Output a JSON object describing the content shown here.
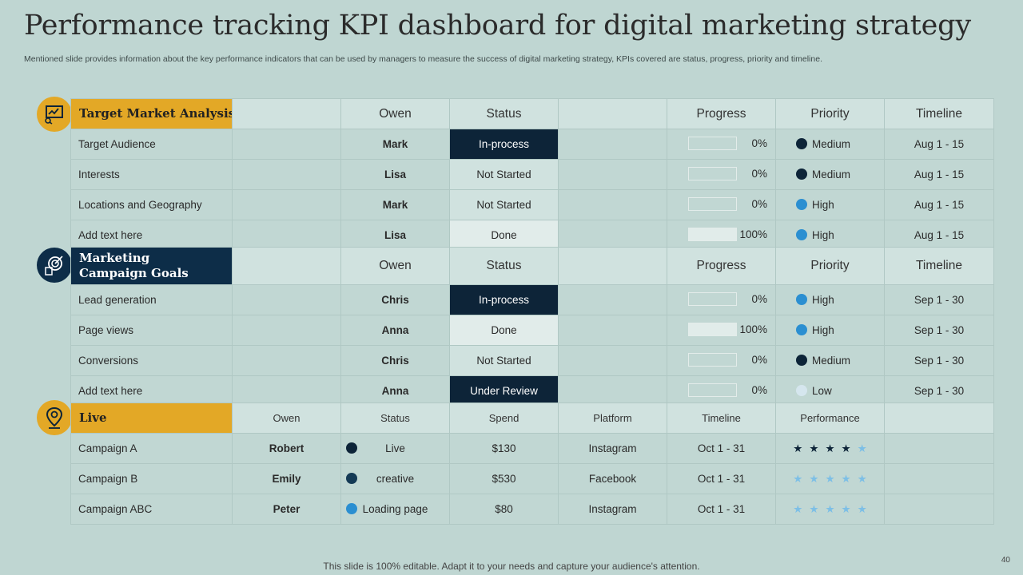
{
  "title": "Performance tracking KPI dashboard for digital marketing strategy",
  "subtitle": "Mentioned slide provides information about the key performance indicators that can be used by managers to measure the success of digital marketing strategy, KPIs covered are status, progress, priority and timeline.",
  "colors": {
    "navy": "#0d2438",
    "accent_yellow": "#e3a826",
    "blue": "#2b8fd1",
    "light_blue": "#d5e6ee",
    "background": "#bfd6d2"
  },
  "section1": {
    "title": "Target Market Analysis",
    "icon": "presentation-chart-icon",
    "headers": [
      "Owen",
      "Status",
      "Progress",
      "Priority",
      "Timeline"
    ],
    "rows": [
      {
        "task": "Target Audience",
        "owner": "Mark",
        "status": "In-process",
        "progress": "0%",
        "progress_value": 0,
        "priority": "Medium",
        "timeline": "Aug 1 - 15"
      },
      {
        "task": "Interests",
        "owner": "Lisa",
        "status": "Not Started",
        "progress": "0%",
        "progress_value": 0,
        "priority": "Medium",
        "timeline": "Aug 1 - 15"
      },
      {
        "task": "Locations and Geography",
        "owner": "Mark",
        "status": "Not Started",
        "progress": "0%",
        "progress_value": 0,
        "priority": "High",
        "timeline": "Aug 1 - 15"
      },
      {
        "task": "Add text here",
        "owner": "Lisa",
        "status": "Done",
        "progress": "100%",
        "progress_value": 100,
        "priority": "High",
        "timeline": "Aug 1 - 15"
      }
    ]
  },
  "section2": {
    "title_line1": "Marketing",
    "title_line2": "Campaign Goals",
    "icon": "target-icon",
    "headers": [
      "Owen",
      "Status",
      "Progress",
      "Priority",
      "Timeline"
    ],
    "rows": [
      {
        "task": "Lead generation",
        "owner": "Chris",
        "status": "In-process",
        "progress": "0%",
        "progress_value": 0,
        "priority": "High",
        "timeline": "Sep 1 - 30"
      },
      {
        "task": "Page views",
        "owner": "Anna",
        "status": "Done",
        "progress": "100%",
        "progress_value": 100,
        "priority": "High",
        "timeline": "Sep 1 - 30"
      },
      {
        "task": "Conversions",
        "owner": "Chris",
        "status": "Not Started",
        "progress": "0%",
        "progress_value": 0,
        "priority": "Medium",
        "timeline": "Sep 1 - 30"
      },
      {
        "task": "Add text here",
        "owner": "Anna",
        "status": "Under Review",
        "progress": "0%",
        "progress_value": 0,
        "priority": "Low",
        "timeline": "Sep 1 - 30"
      }
    ]
  },
  "section3": {
    "title": "Live",
    "icon": "location-pin-icon",
    "headers": [
      "Owen",
      "Status",
      "Spend",
      "Platform",
      "Timeline",
      "Performance"
    ],
    "rows": [
      {
        "campaign": "Campaign A",
        "owner": "Robert",
        "status": "Live",
        "spend": "$130",
        "platform": "Instagram",
        "timeline": "Oct 1 - 31",
        "rating": 4
      },
      {
        "campaign": "Campaign B",
        "owner": "Emily",
        "status": "creative",
        "spend": "$530",
        "platform": "Facebook",
        "timeline": "Oct 1 - 31",
        "rating": 0
      },
      {
        "campaign": "Campaign ABC",
        "owner": "Peter",
        "status": "Loading page",
        "spend": "$80",
        "platform": "Instagram",
        "timeline": "Oct 1 - 31",
        "rating": 0
      }
    ]
  },
  "footer": "This slide is 100% editable. Adapt it to your needs and capture your audience's attention.",
  "page_number": "40"
}
